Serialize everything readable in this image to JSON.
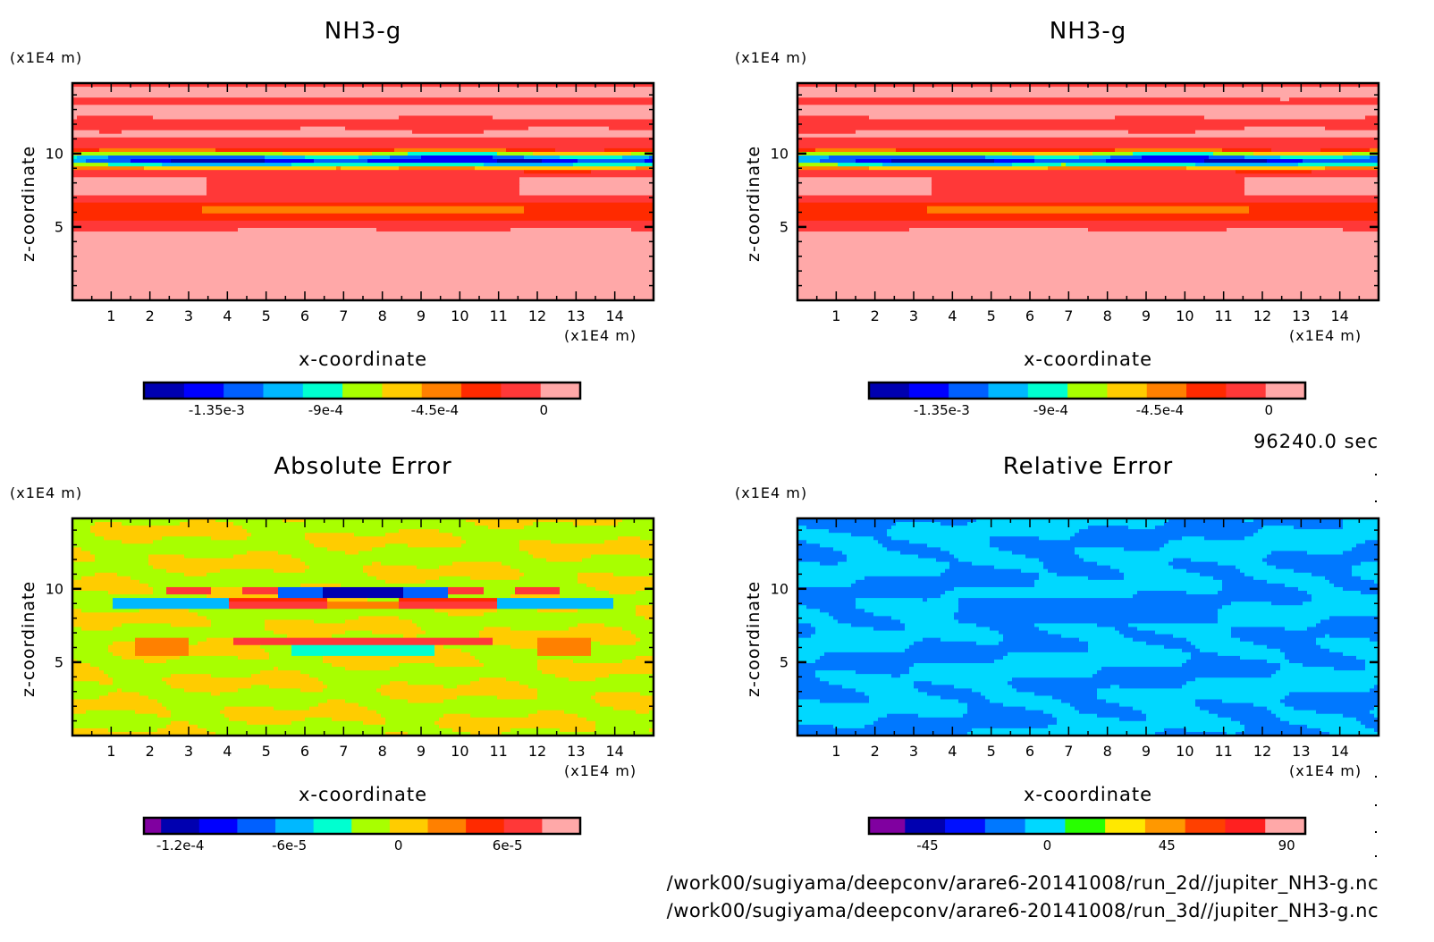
{
  "figure": {
    "time_label": "96240.0 sec",
    "file_paths": [
      "/work00/sugiyama/deepconv/arare6-20141008/run_2d//jupiter_NH3-g.nc",
      "/work00/sugiyama/deepconv/arare6-20141008/run_3d//jupiter_NH3-g.nc"
    ]
  },
  "chart_data": [
    {
      "type": "heatmap",
      "panel": "top-left",
      "title": "NH3-g",
      "xlabel": "x-coordinate",
      "ylabel": "z-coordinate",
      "x_unit": "(x1E4 m)",
      "y_unit": "(x1E4 m)",
      "xlim": [
        0,
        15
      ],
      "ylim": [
        0,
        14.8
      ],
      "xticks": [
        "1",
        "2",
        "3",
        "4",
        "5",
        "6",
        "7",
        "8",
        "9",
        "10",
        "11",
        "12",
        "13",
        "14"
      ],
      "yticks": [
        "5",
        "10"
      ],
      "colorbar": {
        "colors": [
          "#8000a0",
          "#0000b0",
          "#0000ff",
          "#0060ff",
          "#00b8ff",
          "#00ffd0",
          "#a8ff00",
          "#ffcc00",
          "#ff8000",
          "#ff2a00",
          "#ff3838",
          "#ffa8a8"
        ],
        "tick_labels": [
          "-1.35e-3",
          "-9e-4",
          "-4.5e-4",
          "0"
        ],
        "tick_values": [
          -0.00135,
          -0.0009,
          -0.00045,
          0
        ],
        "range": [
          -0.00165,
          0.00015
        ]
      },
      "features": "Horizontal bands of light-red/red near zero; strong negative (blue) minimum band centered at z~9.6; orange/red band near z~6"
    },
    {
      "type": "heatmap",
      "panel": "top-right",
      "title": "NH3-g",
      "xlabel": "x-coordinate",
      "ylabel": "z-coordinate",
      "x_unit": "(x1E4 m)",
      "y_unit": "(x1E4 m)",
      "xlim": [
        0,
        15
      ],
      "ylim": [
        0,
        14.8
      ],
      "xticks": [
        "1",
        "2",
        "3",
        "4",
        "5",
        "6",
        "7",
        "8",
        "9",
        "10",
        "11",
        "12",
        "13",
        "14"
      ],
      "yticks": [
        "5",
        "10"
      ],
      "colorbar": {
        "colors": [
          "#8000a0",
          "#0000b0",
          "#0000ff",
          "#0060ff",
          "#00b8ff",
          "#00ffd0",
          "#a8ff00",
          "#ffcc00",
          "#ff8000",
          "#ff2a00",
          "#ff3838",
          "#ffa8a8"
        ],
        "tick_labels": [
          "-1.35e-3",
          "-9e-4",
          "-4.5e-4",
          "0"
        ],
        "tick_values": [
          -0.00135,
          -0.0009,
          -0.00045,
          0
        ],
        "range": [
          -0.00165,
          0.00015
        ]
      },
      "features": "Nearly identical to top-left panel"
    },
    {
      "type": "heatmap",
      "panel": "bottom-left",
      "title": "Absolute Error",
      "xlabel": "x-coordinate",
      "ylabel": "z-coordinate",
      "x_unit": "(x1E4 m)",
      "y_unit": "(x1E4 m)",
      "xlim": [
        0,
        15
      ],
      "ylim": [
        0,
        14.8
      ],
      "xticks": [
        "1",
        "2",
        "3",
        "4",
        "5",
        "6",
        "7",
        "8",
        "9",
        "10",
        "11",
        "12",
        "13",
        "14"
      ],
      "yticks": [
        "5",
        "10"
      ],
      "colorbar": {
        "colors": [
          "#8000a0",
          "#0000b0",
          "#0000ff",
          "#0060ff",
          "#00b8ff",
          "#00ffd0",
          "#a8ff00",
          "#ffcc00",
          "#ff8000",
          "#ff2a00",
          "#ff3838",
          "#ffa8a8"
        ],
        "tick_labels": [
          "-1.2e-4",
          "-6e-5",
          "0",
          "6e-5"
        ],
        "tick_values": [
          -0.00012,
          -6e-05,
          0,
          6e-05
        ],
        "range": [
          -0.00014,
          0.0001
        ]
      },
      "features": "Mostly green/yellow near zero; blue/cyan and red anomalies near z~9.5 and z~6.5 in center"
    },
    {
      "type": "heatmap",
      "panel": "bottom-right",
      "title": "Relative Error",
      "xlabel": "x-coordinate",
      "ylabel": "z-coordinate",
      "x_unit": "(x1E4 m)",
      "y_unit": "(x1E4 m)",
      "xlim": [
        0,
        15
      ],
      "ylim": [
        0,
        14.8
      ],
      "xticks": [
        "1",
        "2",
        "3",
        "4",
        "5",
        "6",
        "7",
        "8",
        "9",
        "10",
        "11",
        "12",
        "13",
        "14"
      ],
      "yticks": [
        "5",
        "10"
      ],
      "colorbar": {
        "colors": [
          "#8000a0",
          "#0000b0",
          "#0010ff",
          "#0078ff",
          "#00d8ff",
          "#28ff00",
          "#ffe800",
          "#ff9800",
          "#ff4000",
          "#ff2020",
          "#ffa8a8"
        ],
        "tick_labels": [
          "-45",
          "0",
          "45",
          "90"
        ],
        "tick_values": [
          -45,
          0,
          45,
          90
        ],
        "range": [
          -67,
          97
        ]
      },
      "features": "Mostly two blue shades (cyan/blue), indicating small relative error near 0"
    }
  ]
}
